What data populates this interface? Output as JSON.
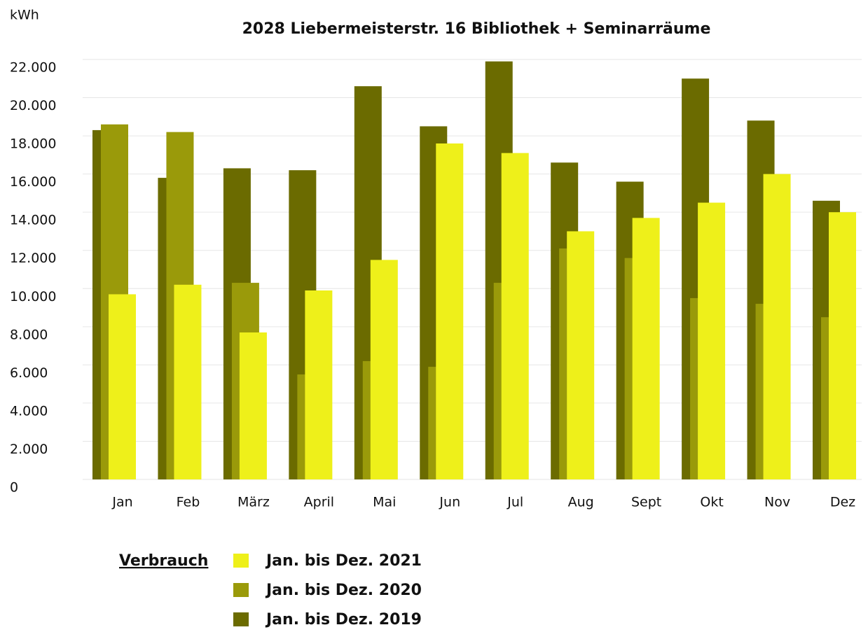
{
  "chart_data": {
    "type": "bar",
    "title": "2028 Liebermeisterstr. 16 Bibliothek + Seminarräume",
    "y_label": "kWh",
    "categories": [
      "Jan",
      "Feb",
      "März",
      "April",
      "Mai",
      "Jun",
      "Jul",
      "Aug",
      "Sept",
      "Okt",
      "Nov",
      "Dez"
    ],
    "series": [
      {
        "name": "Jan. bis Dez. 2019",
        "color": "#6b6b00",
        "values": [
          18300,
          15800,
          16300,
          16200,
          20600,
          18500,
          21900,
          16600,
          15600,
          21000,
          18800,
          14600
        ]
      },
      {
        "name": "Jan. bis Dez. 2020",
        "color": "#9a9a0a",
        "values": [
          18600,
          18200,
          10300,
          5500,
          6200,
          5900,
          10300,
          12100,
          11600,
          9500,
          9200,
          8500
        ]
      },
      {
        "name": "Jan. bis Dez. 2021",
        "color": "#eef01a",
        "values": [
          9700,
          10200,
          7700,
          9900,
          11500,
          17600,
          17100,
          13000,
          13700,
          14500,
          16000,
          14000
        ]
      }
    ],
    "legend_title": "Verbrauch",
    "ylim": [
      0,
      22000
    ],
    "yticks": [
      0,
      {
        "value": 2000,
        "label": "2.000"
      },
      {
        "value": 4000,
        "label": "4.000"
      },
      {
        "value": 6000,
        "label": "6.000"
      },
      {
        "value": 8000,
        "label": "8.000"
      },
      {
        "value": 10000,
        "label": "10.000"
      },
      {
        "value": 12000,
        "label": "12.000"
      },
      {
        "value": 14000,
        "label": "14.000"
      },
      {
        "value": 16000,
        "label": "16.000"
      },
      {
        "value": 18000,
        "label": "18.000"
      },
      {
        "value": 20000,
        "label": "20.000"
      },
      {
        "value": 22000,
        "label": "22.000"
      }
    ],
    "grid": true
  }
}
